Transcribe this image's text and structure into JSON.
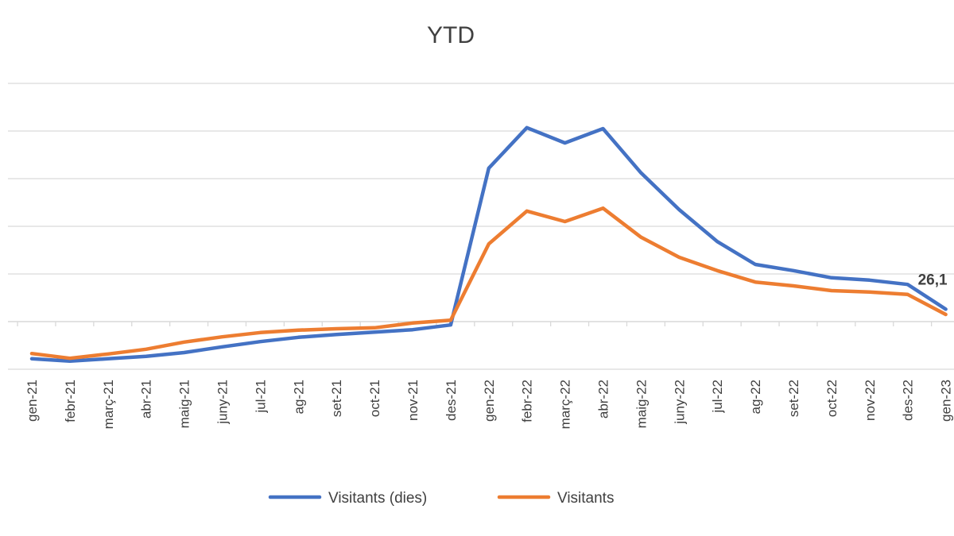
{
  "chart_data": {
    "type": "line",
    "title": "YTD",
    "xlabel": "",
    "ylabel": "",
    "ylim": [
      -100,
      500
    ],
    "y_grid_step": 100,
    "grid": true,
    "y_tick_labels_visible": false,
    "legend_position": "bottom",
    "categories": [
      "gen-21",
      "febr-21",
      "març-21",
      "abr-21",
      "maig-21",
      "juny-21",
      "jul-21",
      "ag-21",
      "set-21",
      "oct-21",
      "nov-21",
      "des-21",
      "gen-22",
      "febr-22",
      "març-22",
      "abr-22",
      "maig-22",
      "juny-22",
      "jul-22",
      "ag-22",
      "set-22",
      "oct-22",
      "nov-22",
      "des-22",
      "gen-23"
    ],
    "series": [
      {
        "name": "Visitants (dies)",
        "color": "#4472C4",
        "values": [
          -78,
          -83,
          -78,
          -73,
          -65,
          -53,
          -42,
          -33,
          -27,
          -22,
          -17,
          -7,
          322,
          407,
          375,
          405,
          312,
          235,
          168,
          120,
          107,
          92,
          87,
          78,
          26.1
        ]
      },
      {
        "name": "Visitants",
        "color": "#ED7D31",
        "values": [
          -67,
          -77,
          -68,
          -58,
          -43,
          -32,
          -23,
          -18,
          -15,
          -13,
          -3,
          3,
          163,
          232,
          210,
          238,
          177,
          135,
          107,
          83,
          75,
          65,
          62,
          57,
          15
        ]
      }
    ],
    "data_labels": [
      {
        "series": 0,
        "category": "gen-23",
        "text": "26,1"
      }
    ]
  }
}
